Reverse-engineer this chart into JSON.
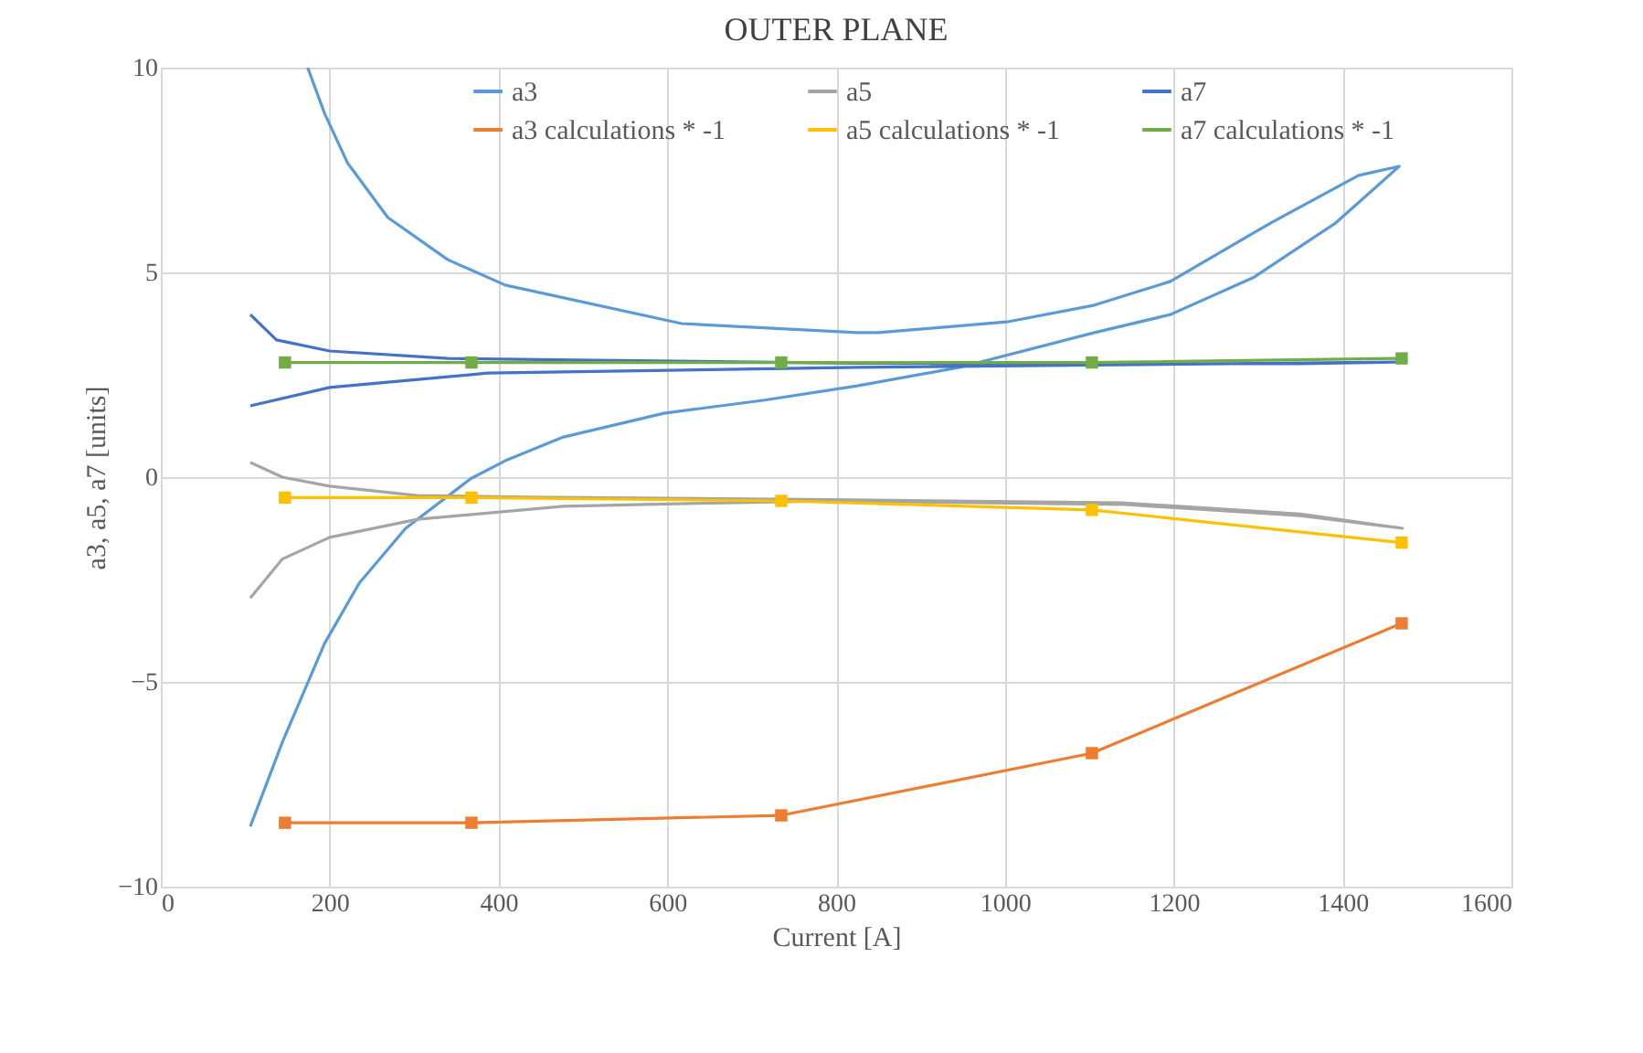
{
  "chart_data": {
    "type": "line",
    "title": "OUTER PLANE",
    "xlabel": "Current [A]",
    "ylabel": "a3, a5, a7 [units]",
    "xlim": [
      0,
      1600
    ],
    "xticks": [
      0,
      200,
      400,
      600,
      800,
      1000,
      1200,
      1400,
      1600
    ],
    "ylim": [
      -10,
      10
    ],
    "yticks": [
      -10,
      -5,
      0,
      5,
      10
    ],
    "grid": true,
    "legend": "top",
    "series": [
      {
        "name": "a3",
        "color": "#5b9bd5",
        "marker": "none",
        "x": [
          106,
          144,
          194,
          235,
          290,
          367,
          408,
          477,
          596,
          715,
          825,
          946,
          1106,
          1196,
          1294,
          1392,
          1467,
          1419,
          1315,
          1196,
          1106,
          1002,
          850,
          825,
          617,
          408,
          340,
          269,
          221,
          194,
          174
        ],
        "values": [
          -8.53,
          -6.47,
          -4.06,
          -2.59,
          -1.25,
          -0.04,
          0.4,
          0.98,
          1.56,
          1.88,
          2.23,
          2.68,
          3.53,
          3.97,
          4.87,
          6.21,
          7.59,
          7.37,
          6.21,
          4.78,
          4.2,
          3.79,
          3.53,
          3.53,
          3.75,
          4.69,
          5.31,
          6.34,
          7.68,
          8.88,
          10.0
        ]
      },
      {
        "name": "a5",
        "color": "#a5a5a5",
        "marker": "none",
        "x": [
          106,
          144,
          200,
          304,
          477,
          685,
          794,
          1142,
          1350,
          1471,
          1350,
          1142,
          794,
          435,
          304,
          200,
          144,
          106
        ],
        "values": [
          -2.95,
          -2.0,
          -1.47,
          -1.03,
          -0.71,
          -0.62,
          -0.58,
          -0.67,
          -0.94,
          -1.25,
          -0.9,
          -0.63,
          -0.55,
          -0.49,
          -0.45,
          -0.22,
          0.0,
          0.36
        ]
      },
      {
        "name": "a7",
        "color": "#4472c4",
        "marker": "none",
        "x": [
          106,
          200,
          387,
          825,
          1467,
          1350,
          825,
          492,
          340,
          200,
          137,
          106
        ],
        "values": [
          1.74,
          2.19,
          2.54,
          2.68,
          2.81,
          2.77,
          2.78,
          2.86,
          2.9,
          3.08,
          3.35,
          3.97
        ]
      },
      {
        "name": "a3 calculations * -1",
        "color": "#ed7d31",
        "marker": "square",
        "x": [
          147,
          368,
          735,
          1103,
          1470
        ],
        "values": [
          -8.44,
          -8.44,
          -8.26,
          -6.74,
          -3.57
        ]
      },
      {
        "name": "a5 calculations * -1",
        "color": "#ffc000",
        "marker": "square",
        "x": [
          147,
          368,
          735,
          1103,
          1470
        ],
        "values": [
          -0.5,
          -0.5,
          -0.58,
          -0.8,
          -1.6
        ]
      },
      {
        "name": "a7 calculations * -1",
        "color": "#70ad47",
        "marker": "square",
        "x": [
          147,
          368,
          735,
          1103,
          1470
        ],
        "values": [
          2.8,
          2.8,
          2.8,
          2.8,
          2.9
        ]
      }
    ]
  }
}
